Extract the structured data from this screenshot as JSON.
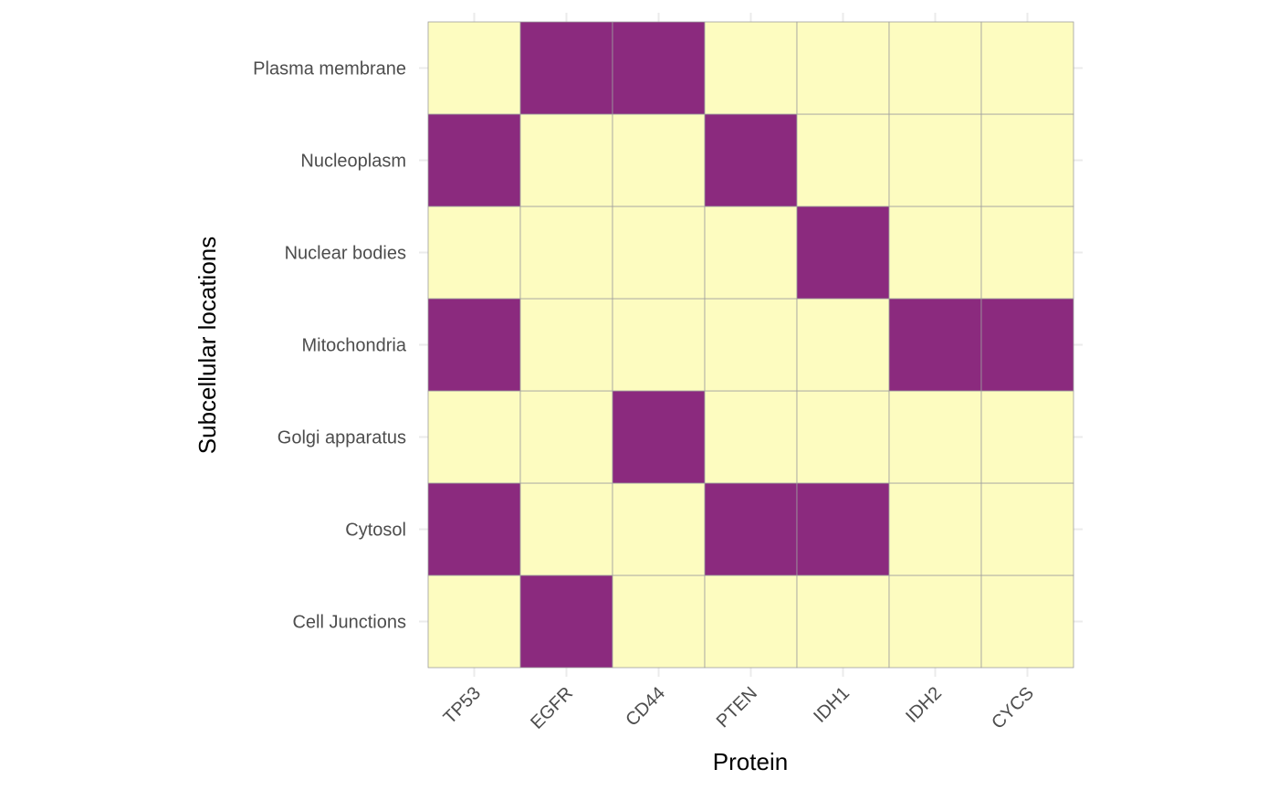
{
  "chart_data": {
    "type": "heatmap",
    "title": "",
    "xlabel": "Protein",
    "ylabel": "Subcellular locations",
    "x_categories": [
      "TP53",
      "EGFR",
      "CD44",
      "PTEN",
      "IDH1",
      "IDH2",
      "CYCS"
    ],
    "y_categories": [
      "Cell Junctions",
      "Cytosol",
      "Golgi apparatus",
      "Mitochondria",
      "Nuclear bodies",
      "Nucleoplasm",
      "Plasma membrane"
    ],
    "values": [
      [
        0,
        1,
        0,
        0,
        0,
        0,
        0
      ],
      [
        1,
        0,
        0,
        1,
        1,
        0,
        0
      ],
      [
        0,
        0,
        1,
        0,
        0,
        0,
        0
      ],
      [
        1,
        0,
        0,
        0,
        0,
        1,
        1
      ],
      [
        0,
        0,
        0,
        0,
        1,
        0,
        0
      ],
      [
        1,
        0,
        0,
        1,
        0,
        0,
        0
      ],
      [
        0,
        1,
        1,
        0,
        0,
        0,
        0
      ]
    ],
    "colors": {
      "present": "#8b2a7e",
      "absent": "#fdfcc0",
      "cell_border": "#9e9e9e",
      "grid": "#ebebeb"
    },
    "legend": "none",
    "grid": true
  }
}
